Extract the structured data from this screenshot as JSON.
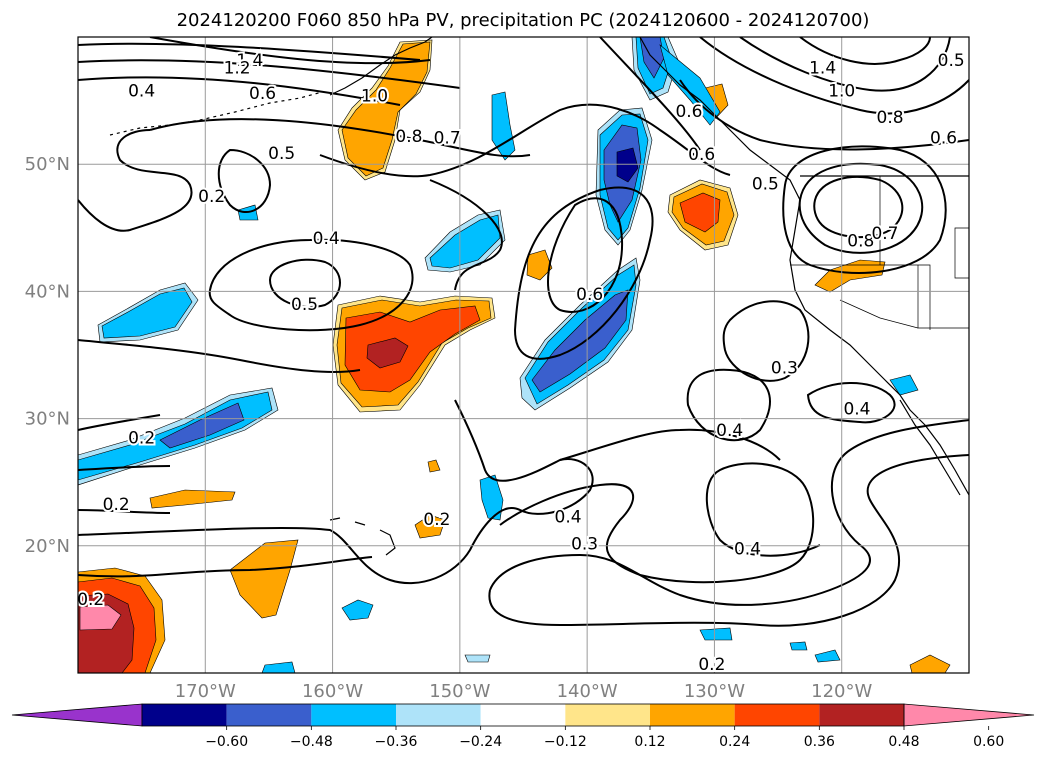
{
  "chart_data": {
    "type": "heatmap",
    "title": "2024120200 F060 850 hPa PV, precipitation PC (2024120600 - 2024120700)",
    "map_extent": {
      "lon_min": -180,
      "lon_max": -110,
      "lat_min": 10,
      "lat_max": 60
    },
    "lat_ticks": [
      {
        "value": 20,
        "label": "20°N"
      },
      {
        "value": 30,
        "label": "30°N"
      },
      {
        "value": 40,
        "label": "40°N"
      },
      {
        "value": 50,
        "label": "50°N"
      }
    ],
    "lon_ticks": [
      {
        "value": -170,
        "label": "170°W"
      },
      {
        "value": -160,
        "label": "160°W"
      },
      {
        "value": -150,
        "label": "150°W"
      },
      {
        "value": -140,
        "label": "140°W"
      },
      {
        "value": -130,
        "label": "130°W"
      },
      {
        "value": -120,
        "label": "120°W"
      }
    ],
    "grid": true,
    "colorbar": {
      "orientation": "horizontal",
      "extend": "both",
      "levels": [
        -0.72,
        -0.6,
        -0.48,
        -0.36,
        -0.24,
        -0.12,
        0.12,
        0.24,
        0.36,
        0.48,
        0.6,
        0.72
      ],
      "tick_labels": [
        "−0.60",
        "−0.48",
        "−0.36",
        "−0.24",
        "−0.12",
        "0.12",
        "0.24",
        "0.36",
        "0.48",
        "0.60"
      ],
      "colors": [
        "#9933cc",
        "#00008b",
        "#3a5fcd",
        "#00bfff",
        "#aee3f9",
        "#ffffff",
        "#ffe58a",
        "#ffa500",
        "#ff4500",
        "#b22222",
        "#ff88aa"
      ],
      "under_color": "#9933cc",
      "over_color": "#ff88aa"
    },
    "pv_contour_labels": [
      {
        "text": "1.4",
        "lon": -166.5,
        "lat": 58.2
      },
      {
        "text": "1.2",
        "lon": -167.5,
        "lat": 57.6
      },
      {
        "text": "0.4",
        "lon": -175,
        "lat": 55.8
      },
      {
        "text": "0.6",
        "lon": -165.5,
        "lat": 55.6
      },
      {
        "text": "1.0",
        "lon": -156.7,
        "lat": 55.4
      },
      {
        "text": "0.8",
        "lon": -154,
        "lat": 52.2
      },
      {
        "text": "0.7",
        "lon": -151,
        "lat": 52.1
      },
      {
        "text": "0.5",
        "lon": -164,
        "lat": 50.9
      },
      {
        "text": "0.2",
        "lon": -169.5,
        "lat": 47.5
      },
      {
        "text": "0.4",
        "lon": -160.5,
        "lat": 44.2
      },
      {
        "text": "0.5",
        "lon": -162.2,
        "lat": 39
      },
      {
        "text": "0.6",
        "lon": -139.8,
        "lat": 39.8
      },
      {
        "text": "0.6",
        "lon": -132,
        "lat": 54.2
      },
      {
        "text": "0.6",
        "lon": -131,
        "lat": 50.8
      },
      {
        "text": "0.5",
        "lon": -126,
        "lat": 48.5
      },
      {
        "text": "0.8",
        "lon": -118.5,
        "lat": 44
      },
      {
        "text": "0.7",
        "lon": -116.6,
        "lat": 44.6
      },
      {
        "text": "1.4",
        "lon": -121.5,
        "lat": 57.6
      },
      {
        "text": "1.0",
        "lon": -120,
        "lat": 55.8
      },
      {
        "text": "0.8",
        "lon": -116.2,
        "lat": 53.7
      },
      {
        "text": "0.6",
        "lon": -112,
        "lat": 52.1
      },
      {
        "text": "0.5",
        "lon": -111.4,
        "lat": 58.2
      },
      {
        "text": "0.3",
        "lon": -124.5,
        "lat": 34
      },
      {
        "text": "0.4",
        "lon": -128.8,
        "lat": 29.1
      },
      {
        "text": "0.4",
        "lon": -118.8,
        "lat": 30.8
      },
      {
        "text": "0.2",
        "lon": -175,
        "lat": 28.5
      },
      {
        "text": "0.2",
        "lon": -177,
        "lat": 23.3
      },
      {
        "text": "0.2",
        "lon": -151.8,
        "lat": 22.1
      },
      {
        "text": "0.4",
        "lon": -141.5,
        "lat": 22.3
      },
      {
        "text": "0.3",
        "lon": -140.2,
        "lat": 20.2
      },
      {
        "text": "0.4",
        "lon": -127.4,
        "lat": 19.8
      },
      {
        "text": "0.2",
        "lon": -179,
        "lat": 15.8
      },
      {
        "text": "0.2",
        "lon": -130.2,
        "lat": 10.7
      }
    ]
  }
}
